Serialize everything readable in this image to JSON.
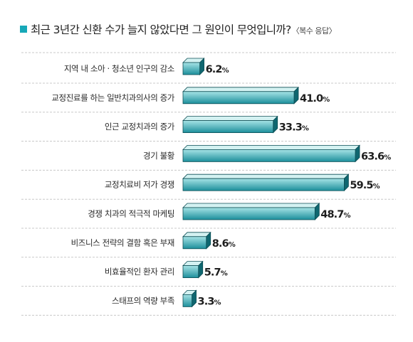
{
  "header": {
    "title": "최근 3년간 신환 수가 늘지 않았다면 그 원인이 무엇입니까?",
    "title_suffix": "〈복수 응답〉"
  },
  "colors": {
    "accent": "#17a8b8",
    "bar_front_top": "#a6e4e6",
    "bar_front_bottom": "#1c8f9b",
    "bar_top": "#d4f2f2",
    "bar_side": "#0f6770",
    "bar_outline": "#0d4e55",
    "separator": "#c8c8c8"
  },
  "chart_data": {
    "type": "bar",
    "orientation": "horizontal",
    "title": "최근 3년간 신환 수가 늘지 않았다면 그 원인이 무엇입니까?",
    "subtitle": "〈복수 응답〉",
    "unit": "%",
    "xlim": [
      0,
      63.6
    ],
    "grid": false,
    "legend": "none",
    "categories": [
      "지역 내 소아 · 청소년 인구의 감소",
      "교정진료를 하는 일반치과의사의 증가",
      "인근 교정치과의 증가",
      "경기 불황",
      "교정치료비 저가 경쟁",
      "경쟁 치과의 적극적 마케팅",
      "비즈니스 전략의 결함 혹은 부재",
      "비효율적인 환자 관리",
      "스태프의 역량 부족"
    ],
    "values": [
      6.2,
      41.0,
      33.3,
      63.6,
      59.5,
      48.7,
      8.6,
      5.7,
      3.3
    ],
    "value_labels": [
      "6.2",
      "41.0",
      "33.3",
      "63.6",
      "59.5",
      "48.7",
      "8.6",
      "5.7",
      "3.3"
    ]
  }
}
